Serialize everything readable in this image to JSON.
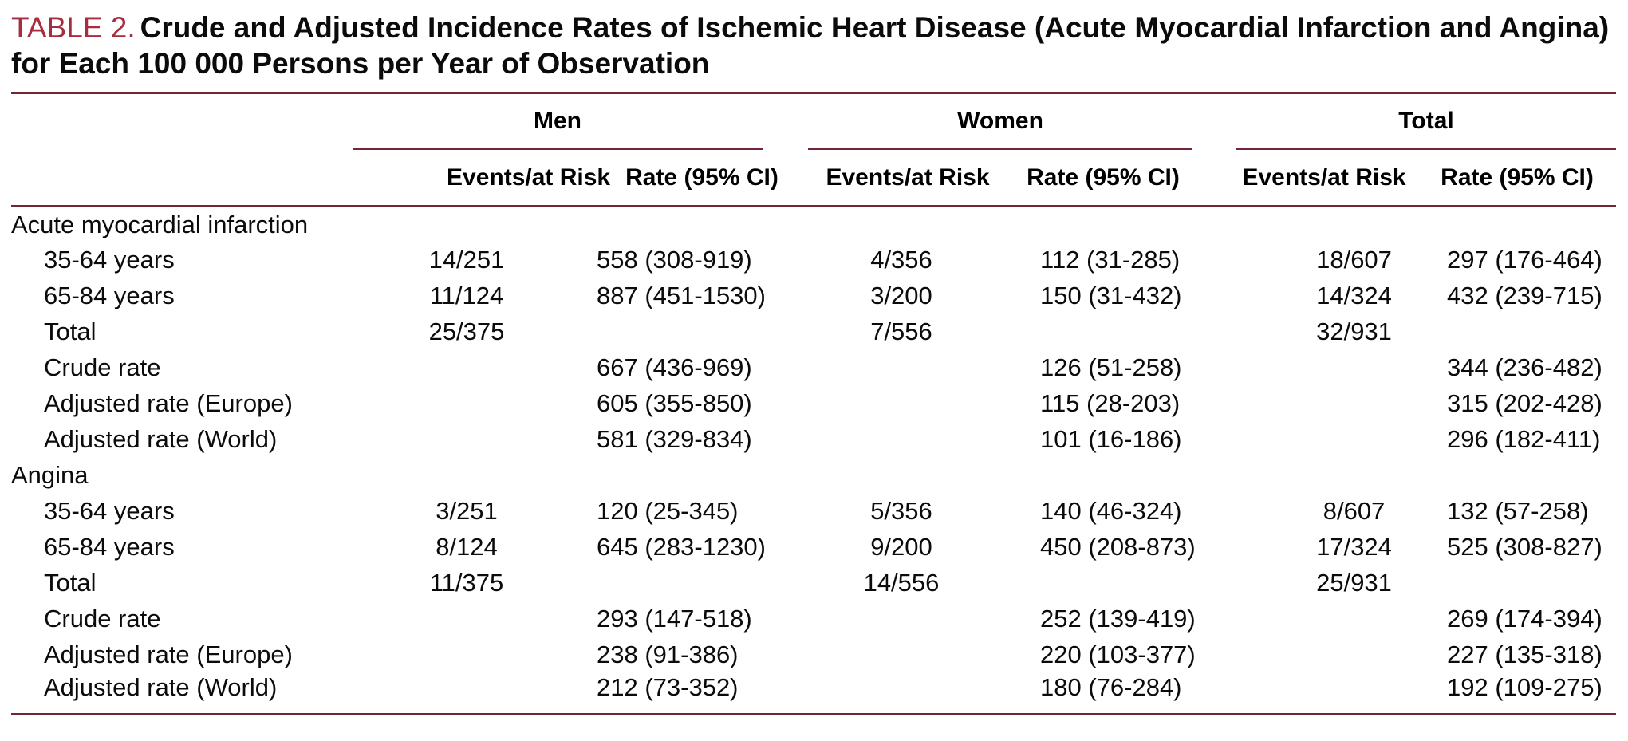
{
  "meta": {
    "accent_color": "#a62c3e",
    "rule_color": "#742536"
  },
  "title": {
    "label": "TABLE 2.",
    "text": "Crude and Adjusted Incidence Rates of Ischemic Heart Disease (Acute Myocardial Infarction and Angina) for Each 100 000 Persons per Year of Observation"
  },
  "table": {
    "groups": [
      {
        "label": "Men"
      },
      {
        "label": "Women"
      },
      {
        "label": "Total"
      }
    ],
    "subheaders": {
      "events": "Events/at Risk",
      "rate": "Rate (95% CI)"
    },
    "sections": [
      {
        "header": "Acute myocardial infarction",
        "rows": [
          {
            "label": "35-64 years",
            "men_events": "14/251",
            "men_rate": "558 (308-919)",
            "women_events": "4/356",
            "women_rate": "112 (31-285)",
            "total_events": "18/607",
            "total_rate": "297 (176-464)"
          },
          {
            "label": "65-84 years",
            "men_events": "11/124",
            "men_rate": "887 (451-1530)",
            "women_events": "3/200",
            "women_rate": "150 (31-432)",
            "total_events": "14/324",
            "total_rate": "432 (239-715)"
          },
          {
            "label": "Total",
            "men_events": "25/375",
            "men_rate": "",
            "women_events": "7/556",
            "women_rate": "",
            "total_events": "32/931",
            "total_rate": ""
          },
          {
            "label": "Crude rate",
            "men_events": "",
            "men_rate": "667 (436-969)",
            "women_events": "",
            "women_rate": "126 (51-258)",
            "total_events": "",
            "total_rate": "344 (236-482)"
          },
          {
            "label": "Adjusted rate (Europe)",
            "men_events": "",
            "men_rate": "605 (355-850)",
            "women_events": "",
            "women_rate": "115 (28-203)",
            "total_events": "",
            "total_rate": "315 (202-428)"
          },
          {
            "label": "Adjusted rate (World)",
            "men_events": "",
            "men_rate": "581 (329-834)",
            "women_events": "",
            "women_rate": "101 (16-186)",
            "total_events": "",
            "total_rate": "296 (182-411)"
          }
        ]
      },
      {
        "header": "Angina",
        "rows": [
          {
            "label": "35-64 years",
            "men_events": "3/251",
            "men_rate": "120 (25-345)",
            "women_events": "5/356",
            "women_rate": "140 (46-324)",
            "total_events": "8/607",
            "total_rate": "132 (57-258)"
          },
          {
            "label": "65-84 years",
            "men_events": "8/124",
            "men_rate": "645 (283-1230)",
            "women_events": "9/200",
            "women_rate": "450 (208-873)",
            "total_events": "17/324",
            "total_rate": "525 (308-827)"
          },
          {
            "label": "Total",
            "men_events": "11/375",
            "men_rate": "",
            "women_events": "14/556",
            "women_rate": "",
            "total_events": "25/931",
            "total_rate": ""
          },
          {
            "label": "Crude rate",
            "men_events": "",
            "men_rate": "293 (147-518)",
            "women_events": "",
            "women_rate": "252 (139-419)",
            "total_events": "",
            "total_rate": "269 (174-394)"
          },
          {
            "label": "Adjusted rate (Europe)",
            "men_events": "",
            "men_rate": "238 (91-386)",
            "women_events": "",
            "women_rate": "220 (103-377)",
            "total_events": "",
            "total_rate": "227 (135-318)"
          },
          {
            "label": "Adjusted rate (World)",
            "men_events": "",
            "men_rate": "212 (73-352)",
            "women_events": "",
            "women_rate": "180 (76-284)",
            "total_events": "",
            "total_rate": "192 (109-275)"
          }
        ]
      }
    ]
  }
}
